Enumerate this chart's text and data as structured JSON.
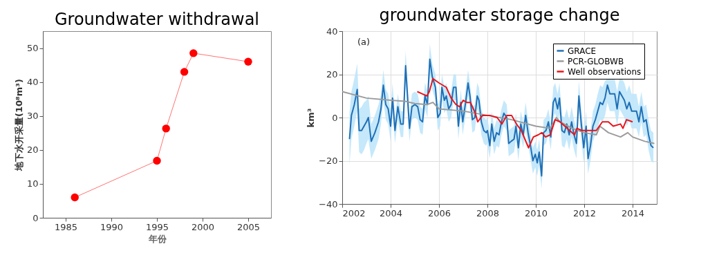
{
  "chart_data": [
    {
      "type": "line",
      "title": "Groundwater withdrawal",
      "xlabel": "年份",
      "ylabel": "地下水开采量(10⁸m³)",
      "x": [
        1986,
        1995,
        1996,
        1998,
        1999,
        2005
      ],
      "series": [
        {
          "color": "#ff0000",
          "values": [
            6,
            16.8,
            26.3,
            43,
            48.5,
            46
          ]
        }
      ],
      "xlim": [
        1982.5,
        2007.5
      ],
      "xticks": [
        1985,
        1990,
        1995,
        2000,
        2005
      ],
      "ylim": [
        0,
        55
      ],
      "yticks": [
        0,
        10,
        20,
        30,
        40,
        50
      ],
      "marker": "circle",
      "grid": false,
      "legend": false
    },
    {
      "type": "line",
      "title": "groundwater storage change",
      "ylabel": "km³",
      "annotations": [
        "(a)"
      ],
      "series": [
        {
          "name": "GRACE",
          "color": "#1f6fb5",
          "x": [
            2002.3,
            2002.38,
            2002.5,
            2002.62,
            2002.7,
            2002.8,
            2002.9,
            2003.0,
            2003.08,
            2003.2,
            2003.35,
            2003.5,
            2003.6,
            2003.7,
            2003.8,
            2003.9,
            2004.0,
            2004.08,
            2004.18,
            2004.3,
            2004.42,
            2004.52,
            2004.62,
            2004.78,
            2004.88,
            2005.0,
            2005.12,
            2005.22,
            2005.32,
            2005.42,
            2005.52,
            2005.62,
            2005.72,
            2005.85,
            2005.95,
            2006.05,
            2006.12,
            2006.22,
            2006.3,
            2006.4,
            2006.5,
            2006.6,
            2006.7,
            2006.8,
            2006.9,
            2006.98,
            2007.1,
            2007.2,
            2007.28,
            2007.38,
            2007.48,
            2007.58,
            2007.65,
            2007.75,
            2007.85,
            2007.95,
            2008.0,
            2008.1,
            2008.18,
            2008.28,
            2008.38,
            2008.48,
            2008.58,
            2008.68,
            2008.8,
            2008.88,
            2008.98,
            2009.1,
            2009.18,
            2009.28,
            2009.38,
            2009.48,
            2009.58,
            2009.68,
            2009.78,
            2009.88,
            2009.98,
            2010.06,
            2010.14,
            2010.24,
            2010.32,
            2010.42,
            2010.52,
            2010.62,
            2010.72,
            2010.8,
            2010.9,
            2010.98,
            2011.08,
            2011.18,
            2011.28,
            2011.38,
            2011.48,
            2011.58,
            2011.68,
            2011.78,
            2011.88,
            2011.98,
            2012.08,
            2012.16,
            2012.26,
            2012.36,
            2012.46,
            2012.56,
            2012.66,
            2012.76,
            2012.86,
            2012.96,
            2013.06,
            2013.16,
            2013.26,
            2013.36,
            2013.46,
            2013.56,
            2013.66,
            2013.76,
            2013.86,
            2013.96,
            2014.06,
            2014.16,
            2014.26,
            2014.36,
            2014.46,
            2014.56,
            2014.66,
            2014.76,
            2014.86
          ],
          "values": [
            -10,
            1,
            6,
            13,
            -6,
            -6,
            -4,
            -2,
            0,
            -11,
            -7,
            -2,
            4,
            15,
            6,
            4,
            -4,
            9,
            -6,
            5,
            -3,
            -3,
            24,
            -5,
            5,
            6,
            5,
            -1,
            -2,
            10,
            6,
            27,
            19,
            14,
            0,
            2,
            14,
            8,
            10,
            4,
            6,
            14,
            14,
            -4,
            7,
            -2,
            7,
            16,
            10,
            -1,
            0,
            10,
            8,
            -2,
            -6,
            -7,
            -6,
            -13,
            -3,
            -11,
            -7,
            -8,
            -2,
            2,
            0,
            -12,
            -11,
            -10,
            -4,
            -14,
            -3,
            -8,
            1,
            -7,
            -13,
            -20,
            -17,
            -21,
            -16,
            -27,
            -7,
            -6,
            -2,
            -9,
            7,
            9,
            4,
            9,
            -6,
            -7,
            -3,
            -8,
            -2,
            -8,
            -12,
            10,
            -3,
            -14,
            -4,
            -19,
            -13,
            -4,
            -1,
            3,
            7,
            6,
            9,
            15,
            11,
            11,
            11,
            4,
            12,
            10,
            8,
            4,
            7,
            3,
            3,
            3,
            -2,
            5,
            -2,
            -1,
            -8,
            -13,
            -14
          ],
          "lower": [
            -22,
            -10,
            -4,
            3,
            -16,
            -17,
            -15,
            -12,
            -10,
            -19,
            -15,
            -10,
            -3,
            8,
            -1,
            -3,
            -11,
            2,
            -12,
            -1,
            -9,
            -9,
            17,
            -11,
            -1,
            0,
            -1,
            -7,
            -8,
            4,
            0,
            20,
            13,
            8,
            -6,
            -4,
            8,
            2,
            4,
            -2,
            0,
            8,
            8,
            -10,
            1,
            -8,
            1,
            10,
            4,
            -7,
            -6,
            4,
            2,
            -8,
            -12,
            -13,
            -12,
            -19,
            -9,
            -17,
            -13,
            -14,
            -8,
            -4,
            -6,
            -18,
            -17,
            -16,
            -10,
            -20,
            -9,
            -14,
            -5,
            -13,
            -19,
            -26,
            -23,
            -27,
            -22,
            -33,
            -13,
            -12,
            -8,
            -15,
            0,
            2,
            -3,
            2,
            -13,
            -14,
            -10,
            -15,
            -9,
            -15,
            -19,
            3,
            -10,
            -21,
            -11,
            -26,
            -20,
            -11,
            -8,
            -5,
            -1,
            -2,
            1,
            7,
            3,
            3,
            3,
            -4,
            4,
            2,
            0,
            -4,
            -1,
            -5,
            -5,
            -5,
            -9,
            -2,
            -9,
            -8,
            -15,
            -20,
            -21
          ],
          "upper": [
            2,
            12,
            18,
            25,
            4,
            5,
            7,
            8,
            10,
            -3,
            1,
            6,
            11,
            22,
            13,
            11,
            3,
            16,
            0,
            11,
            3,
            3,
            31,
            1,
            11,
            12,
            11,
            5,
            4,
            16,
            12,
            34,
            25,
            20,
            6,
            8,
            20,
            14,
            16,
            10,
            12,
            20,
            20,
            2,
            13,
            4,
            13,
            22,
            16,
            5,
            6,
            16,
            14,
            4,
            0,
            -1,
            0,
            -7,
            3,
            -5,
            -1,
            -2,
            4,
            8,
            6,
            -6,
            -5,
            -4,
            2,
            -8,
            3,
            -2,
            7,
            -1,
            -7,
            -14,
            -11,
            -15,
            -10,
            -21,
            -1,
            0,
            4,
            -3,
            14,
            16,
            11,
            16,
            1,
            0,
            4,
            -1,
            5,
            -1,
            -5,
            17,
            4,
            -7,
            3,
            -12,
            -6,
            3,
            6,
            11,
            15,
            14,
            17,
            18,
            18,
            18,
            18,
            12,
            18,
            18,
            16,
            12,
            15,
            11,
            11,
            11,
            5,
            12,
            5,
            6,
            -1,
            -6,
            -7
          ]
        },
        {
          "name": "PCR-GLOBWB",
          "color": "#9b9b9b",
          "x": [
            2002.0,
            2003.0,
            2004.0,
            2004.6,
            2005.0,
            2005.5,
            2005.75,
            2006.0,
            2007.0,
            2008.0,
            2009.0,
            2010.0,
            2010.6,
            2010.85,
            2011.0,
            2011.5,
            2012.0,
            2012.5,
            2012.65,
            2013.0,
            2013.5,
            2013.8,
            2014.0,
            2014.5,
            2014.9
          ],
          "values": [
            12,
            9,
            8,
            7.5,
            6.5,
            6,
            7,
            4,
            3,
            1,
            -1,
            -4,
            -5,
            0,
            -2,
            -5,
            -7,
            -8,
            -4,
            -7,
            -9,
            -7,
            -9,
            -11,
            -12
          ]
        },
        {
          "name": "Well observations",
          "color": "#e8141b",
          "x": [
            2005.1,
            2005.3,
            2005.5,
            2005.6,
            2005.75,
            2006.0,
            2006.3,
            2006.5,
            2006.7,
            2006.85,
            2007.0,
            2007.15,
            2007.3,
            2007.5,
            2007.6,
            2007.8,
            2008.1,
            2008.4,
            2008.6,
            2008.8,
            2009.0,
            2009.2,
            2009.4,
            2009.7,
            2009.9,
            2010.1,
            2010.25,
            2010.4,
            2010.6,
            2010.8,
            2011.0,
            2011.2,
            2011.4,
            2011.6,
            2011.7,
            2011.9,
            2012.2,
            2012.5,
            2012.75,
            2013.0,
            2013.2,
            2013.5,
            2013.6,
            2013.75,
            2014.0
          ],
          "values": [
            12,
            11,
            10,
            12,
            18,
            16,
            14,
            9,
            6,
            5,
            8,
            7,
            7,
            2,
            -2,
            1,
            1,
            0,
            -3,
            1,
            1,
            -3,
            -6,
            -14,
            -9,
            -8,
            -7,
            -9,
            -8,
            -1,
            -2,
            -4,
            -6,
            -8,
            -5,
            -6,
            -6,
            -6,
            -2,
            -2,
            -4,
            -3,
            -5,
            -1,
            -2
          ]
        }
      ],
      "xlim": [
        2002,
        2015
      ],
      "xticks": [
        2002,
        2004,
        2006,
        2008,
        2010,
        2012,
        2014
      ],
      "ylim": [
        -40,
        40
      ],
      "yticks": [
        -40,
        -20,
        0,
        20,
        40
      ],
      "grid": true,
      "legend": "top right"
    }
  ]
}
